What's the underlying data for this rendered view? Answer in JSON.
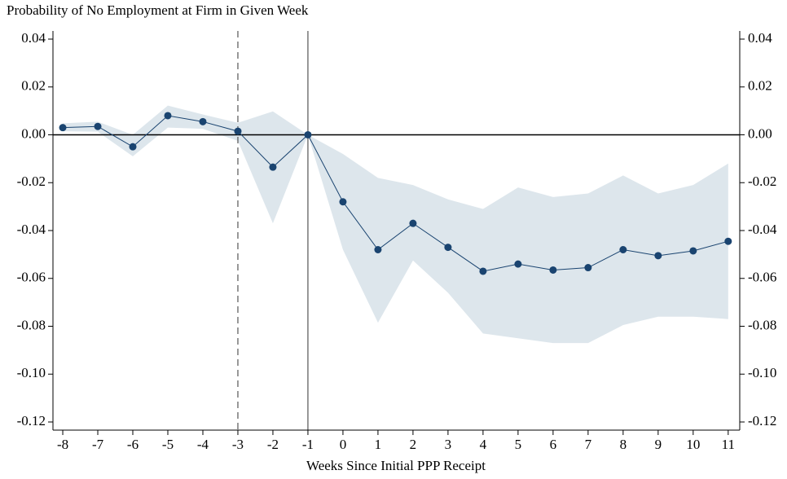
{
  "chart_data": {
    "type": "line",
    "title": "Probability of No Employment at Firm in Given Week",
    "x_label": "Weeks Since Initial PPP Receipt",
    "x": [
      -8,
      -7,
      -6,
      -5,
      -4,
      -3,
      -2,
      -1,
      0,
      1,
      2,
      3,
      4,
      5,
      6,
      7,
      8,
      9,
      10,
      11
    ],
    "xlim": [
      -8.28,
      11.33
    ],
    "xticks": [
      -8,
      -7,
      -6,
      -5,
      -4,
      -3,
      -2,
      -1,
      0,
      1,
      2,
      3,
      4,
      5,
      6,
      7,
      8,
      9,
      10,
      11
    ],
    "ylim": [
      -0.1234,
      0.0434
    ],
    "yticks": [
      0.04,
      0.02,
      {
        "value": 0,
        "label": "0.00"
      },
      -0.02,
      -0.04,
      -0.06,
      -0.08,
      {
        "value": -0.1,
        "label": "-0.10"
      },
      -0.12
    ],
    "y2lim": [
      -0.1234,
      0.0434
    ],
    "y2ticks": [
      0.04,
      0.02,
      {
        "value": 0,
        "label": "0.00"
      },
      -0.02,
      -0.04,
      -0.06,
      -0.08,
      {
        "value": -0.1,
        "label": "-0.10"
      },
      -0.12
    ],
    "series": [
      {
        "color": "#1a4470",
        "values": [
          0.003,
          0.0035,
          -0.005,
          0.008,
          0.0055,
          0.0015,
          -0.0135,
          0,
          -0.028,
          -0.048,
          -0.037,
          -0.047,
          -0.057,
          -0.054,
          -0.0565,
          -0.0555,
          -0.048,
          -0.0505,
          -0.0485,
          -0.0445
        ],
        "ci_upper": [
          0.0048,
          0.0055,
          0.0,
          0.0122,
          0.0085,
          0.005,
          0.0098,
          0,
          -0.008,
          -0.018,
          -0.021,
          -0.027,
          -0.031,
          -0.022,
          -0.026,
          -0.0245,
          -0.017,
          -0.0245,
          -0.021,
          -0.012
        ],
        "ci_lower": [
          0.0015,
          0.0013,
          -0.009,
          0.003,
          0.0025,
          -0.0025,
          -0.037,
          0,
          -0.048,
          -0.0785,
          -0.0525,
          -0.066,
          -0.083,
          -0.085,
          -0.087,
          -0.087,
          -0.0795,
          -0.076,
          -0.076,
          -0.077
        ],
        "ci_color": "#dde6ec"
      }
    ],
    "vlines": [
      {
        "value": -3,
        "style": "dashed"
      },
      {
        "value": -1,
        "style": "solid"
      }
    ],
    "hline": 0
  }
}
